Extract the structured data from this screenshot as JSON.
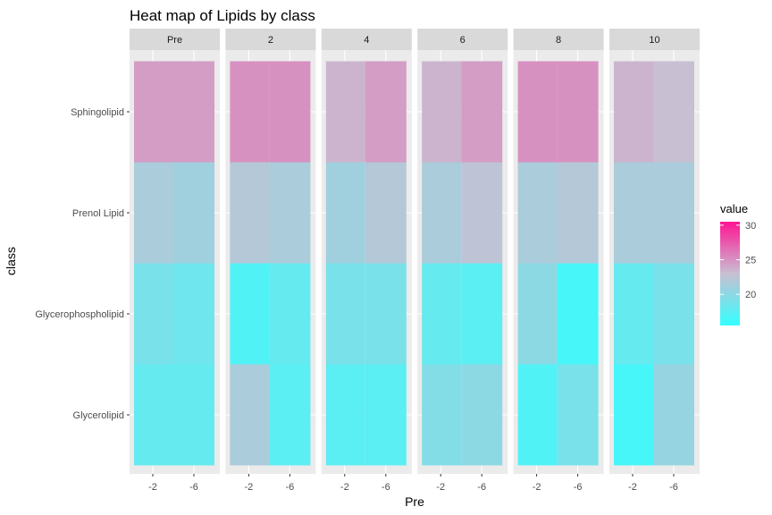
{
  "chart_data": {
    "type": "heatmap",
    "title": "Heat map of Lipids by class",
    "xlabel": "Pre",
    "ylabel": "class",
    "facets": [
      "Pre",
      "2",
      "4",
      "6",
      "8",
      "10"
    ],
    "x_categories": [
      "-2",
      "-6"
    ],
    "y_categories": [
      "Glycerolipid",
      "Glycerophospholipid",
      "Prenol Lipid",
      "Sphingolipid"
    ],
    "legend": {
      "title": "value",
      "breaks": [
        20,
        25,
        30
      ],
      "range": [
        15.5,
        30.5
      ],
      "position": "right",
      "colors": {
        "low": "#33ffff",
        "mid": "#c8bfd2",
        "high": "#ff1493"
      }
    },
    "grid": true,
    "values": {
      "Pre": {
        "Sphingolipid": [
          24.5,
          24.5
        ],
        "Prenol Lipid": [
          21.5,
          21.0
        ],
        "Glycerophospholipid": [
          19.0,
          18.5
        ],
        "Glycerolipid": [
          18.0,
          18.0
        ]
      },
      "2": {
        "Sphingolipid": [
          25.0,
          25.0
        ],
        "Prenol Lipid": [
          22.0,
          21.5
        ],
        "Glycerophospholipid": [
          17.0,
          18.0
        ],
        "Glycerolipid": [
          21.5,
          17.5
        ]
      },
      "4": {
        "Sphingolipid": [
          23.5,
          24.5
        ],
        "Prenol Lipid": [
          21.0,
          22.0
        ],
        "Glycerophospholipid": [
          19.0,
          19.0
        ],
        "Glycerolipid": [
          17.5,
          17.5
        ]
      },
      "6": {
        "Sphingolipid": [
          23.5,
          24.5
        ],
        "Prenol Lipid": [
          21.5,
          22.5
        ],
        "Glycerophospholipid": [
          18.0,
          17.5
        ],
        "Glycerolipid": [
          19.5,
          20.0
        ]
      },
      "8": {
        "Sphingolipid": [
          25.0,
          25.0
        ],
        "Prenol Lipid": [
          21.5,
          22.0
        ],
        "Glycerophospholipid": [
          20.0,
          16.5
        ],
        "Glycerolipid": [
          17.0,
          19.0
        ]
      },
      "10": {
        "Sphingolipid": [
          23.5,
          23.0
        ],
        "Prenol Lipid": [
          21.5,
          21.5
        ],
        "Glycerophospholipid": [
          18.0,
          19.0
        ],
        "Glycerolipid": [
          16.5,
          20.5
        ]
      }
    }
  }
}
